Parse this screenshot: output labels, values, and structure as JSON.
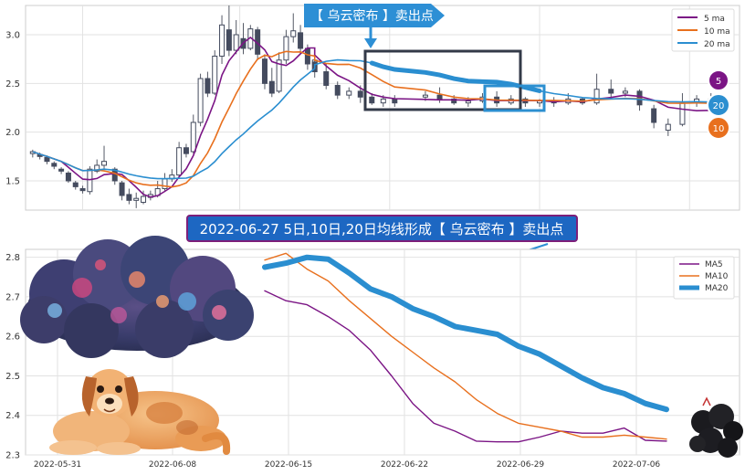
{
  "annotations": {
    "top_arrow_label": "【 乌云密布 】卖出点",
    "bottom_title": "2022-06-27 5日,10日,20日均线形成【 乌云密布 】卖出点"
  },
  "badges": [
    {
      "text": "5",
      "color": "#7b1585"
    },
    {
      "text": "20",
      "color": "#2c8fd0"
    },
    {
      "text": "10",
      "color": "#e8701e"
    }
  ],
  "colors": {
    "ma5": "#7b1585",
    "ma10": "#e8701e",
    "ma20": "#2a8ed0",
    "candle_up": "#444b5e",
    "annotation_bg": "#2d8fd5",
    "title_bg": "#1d67c2",
    "title_border": "#7d1f7a"
  },
  "chart_data": [
    {
      "type": "candlestick",
      "title": "",
      "ylim": [
        1.2,
        3.3
      ],
      "yticks": [
        "1.5",
        "2.0",
        "2.5",
        "3.0"
      ],
      "grid": true,
      "legend": {
        "placement": "top-right",
        "entries": [
          "5 ma",
          "10 ma",
          "20 ma"
        ]
      },
      "candles": [
        [
          0.02,
          1.78,
          1.8,
          1.74,
          1.82
        ],
        [
          0.04,
          1.77,
          1.75,
          1.72,
          1.79
        ],
        [
          0.06,
          1.74,
          1.7,
          1.67,
          1.76
        ],
        [
          0.08,
          1.68,
          1.65,
          1.62,
          1.7
        ],
        [
          0.1,
          1.62,
          1.6,
          1.57,
          1.64
        ],
        [
          0.12,
          1.58,
          1.5,
          1.48,
          1.6
        ],
        [
          0.14,
          1.48,
          1.44,
          1.41,
          1.5
        ],
        [
          0.16,
          1.42,
          1.4,
          1.37,
          1.45
        ],
        [
          0.18,
          1.39,
          1.62,
          1.36,
          1.65
        ],
        [
          0.2,
          1.6,
          1.66,
          1.58,
          1.72
        ],
        [
          0.22,
          1.66,
          1.7,
          1.62,
          1.86
        ],
        [
          0.25,
          1.62,
          1.5,
          1.46,
          1.64
        ],
        [
          0.27,
          1.48,
          1.35,
          1.3,
          1.5
        ],
        [
          0.29,
          1.36,
          1.3,
          1.26,
          1.42
        ],
        [
          0.31,
          1.3,
          1.32,
          1.22,
          1.38
        ],
        [
          0.33,
          1.28,
          1.34,
          1.26,
          1.4
        ],
        [
          0.35,
          1.33,
          1.36,
          1.3,
          1.4
        ],
        [
          0.37,
          1.35,
          1.42,
          1.33,
          1.5
        ],
        [
          0.39,
          1.42,
          1.52,
          1.4,
          1.58
        ],
        [
          0.41,
          1.52,
          1.56,
          1.49,
          1.62
        ],
        [
          0.43,
          1.56,
          1.84,
          1.54,
          1.9
        ],
        [
          0.45,
          1.84,
          1.78,
          1.74,
          1.88
        ],
        [
          0.47,
          1.8,
          2.1,
          1.78,
          2.18
        ],
        [
          0.49,
          2.1,
          2.55,
          2.06,
          2.6
        ],
        [
          0.51,
          2.55,
          2.4,
          2.36,
          2.62
        ],
        [
          0.53,
          2.4,
          2.78,
          2.38,
          2.84
        ],
        [
          0.55,
          2.78,
          3.1,
          2.7,
          3.2
        ],
        [
          0.57,
          3.05,
          2.84,
          2.78,
          3.3
        ],
        [
          0.59,
          2.84,
          3.0,
          2.8,
          3.15
        ],
        [
          0.61,
          2.96,
          2.86,
          2.8,
          3.12
        ],
        [
          0.63,
          2.86,
          3.06,
          2.84,
          3.1
        ],
        [
          0.65,
          3.05,
          2.8,
          2.74,
          3.08
        ],
        [
          0.67,
          2.75,
          2.5,
          2.44,
          2.8
        ],
        [
          0.69,
          2.52,
          2.4,
          2.36,
          2.66
        ],
        [
          0.71,
          2.42,
          2.74,
          2.4,
          2.82
        ],
        [
          0.73,
          2.74,
          2.98,
          2.7,
          3.05
        ],
        [
          0.75,
          2.98,
          3.04,
          2.92,
          3.22
        ],
        [
          0.77,
          3.02,
          2.86,
          2.8,
          3.1
        ],
        [
          0.79,
          2.86,
          2.7,
          2.64,
          2.9
        ],
        [
          0.81,
          2.7,
          2.74,
          2.66,
          2.8
        ]
      ]
    },
    {
      "type": "line",
      "title": "",
      "x": [
        "2022-05-31",
        "2022-06-08",
        "2022-06-15",
        "2022-06-22",
        "2022-06-29",
        "2022-07-06"
      ],
      "ylim": [
        2.3,
        2.82
      ],
      "yticks": [
        "2.3",
        "2.4",
        "2.5",
        "2.6",
        "2.7",
        "2.8"
      ],
      "grid": true,
      "legend": {
        "placement": "top-right"
      },
      "series": [
        {
          "name": "MA5",
          "points": [
            [
              0.0,
              2.715
            ],
            [
              0.8,
              2.69
            ],
            [
              1.6,
              2.68
            ],
            [
              2.4,
              2.65
            ],
            [
              3.2,
              2.615
            ],
            [
              4.0,
              2.565
            ],
            [
              4.8,
              2.5
            ],
            [
              5.6,
              2.43
            ],
            [
              6.4,
              2.38
            ],
            [
              7.2,
              2.36
            ],
            [
              8.0,
              2.335
            ],
            [
              8.8,
              2.333
            ],
            [
              9.6,
              2.333
            ],
            [
              10.4,
              2.345
            ],
            [
              11.2,
              2.36
            ],
            [
              12.0,
              2.355
            ],
            [
              12.8,
              2.355
            ],
            [
              13.6,
              2.368
            ],
            [
              14.4,
              2.337
            ],
            [
              15.2,
              2.335
            ]
          ]
        },
        {
          "name": "MA10",
          "points": [
            [
              0.0,
              2.793
            ],
            [
              0.8,
              2.81
            ],
            [
              1.6,
              2.77
            ],
            [
              2.4,
              2.74
            ],
            [
              3.2,
              2.69
            ],
            [
              4.0,
              2.645
            ],
            [
              4.8,
              2.6
            ],
            [
              5.6,
              2.56
            ],
            [
              6.4,
              2.52
            ],
            [
              7.2,
              2.485
            ],
            [
              8.0,
              2.44
            ],
            [
              8.8,
              2.405
            ],
            [
              9.6,
              2.38
            ],
            [
              10.4,
              2.37
            ],
            [
              11.2,
              2.36
            ],
            [
              12.0,
              2.345
            ],
            [
              12.8,
              2.345
            ],
            [
              13.6,
              2.35
            ],
            [
              14.4,
              2.345
            ],
            [
              15.2,
              2.34
            ]
          ]
        },
        {
          "name": "MA20",
          "points": [
            [
              0.0,
              2.775
            ],
            [
              0.8,
              2.785
            ],
            [
              1.6,
              2.8
            ],
            [
              2.4,
              2.795
            ],
            [
              3.2,
              2.76
            ],
            [
              4.0,
              2.72
            ],
            [
              4.8,
              2.7
            ],
            [
              5.6,
              2.67
            ],
            [
              6.4,
              2.65
            ],
            [
              7.2,
              2.625
            ],
            [
              8.0,
              2.615
            ],
            [
              8.8,
              2.605
            ],
            [
              9.6,
              2.575
            ],
            [
              10.4,
              2.555
            ],
            [
              11.2,
              2.525
            ],
            [
              12.0,
              2.495
            ],
            [
              12.8,
              2.47
            ],
            [
              13.6,
              2.455
            ],
            [
              14.4,
              2.43
            ],
            [
              15.2,
              2.415
            ]
          ]
        }
      ]
    }
  ]
}
